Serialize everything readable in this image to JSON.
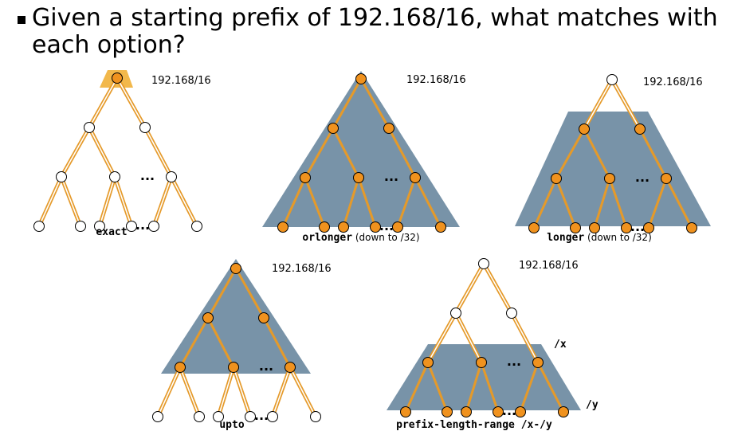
{
  "title": "Given a starting prefix of 192.168/16, what matches with each option?",
  "colors": {
    "region": "#7893a8",
    "edge": "#e59a2a",
    "edge_plain": "#f0c470",
    "node_filled": "#f0921e",
    "node_outline": "#000000",
    "background": "#ffffff"
  },
  "panels": [
    {
      "id": "exact",
      "prefix_label": "192.168/16",
      "option_label": "exact",
      "suffix_label": "",
      "ellipsis_mid": "...",
      "ellipsis_leaf": "..."
    },
    {
      "id": "orlonger",
      "prefix_label": "192.168/16",
      "option_label": "orlonger",
      "suffix_label": "(down to /32)",
      "ellipsis_mid": "...",
      "ellipsis_leaf": "..."
    },
    {
      "id": "longer",
      "prefix_label": "192.168/16",
      "option_label": "longer",
      "suffix_label": "(down to /32)",
      "ellipsis_mid": "...",
      "ellipsis_leaf": "..."
    },
    {
      "id": "upto",
      "prefix_label": "192.168/16",
      "option_label": "upto",
      "suffix_label": "",
      "ellipsis_mid": "...",
      "ellipsis_leaf": "..."
    },
    {
      "id": "prefix-length-range",
      "prefix_label": "192.168/16",
      "option_label": "prefix-length-range /x-/y",
      "suffix_label": "",
      "ellipsis_mid": "...",
      "ellipsis_leaf": "...",
      "x_marker": "/x",
      "y_marker": "/y"
    }
  ]
}
